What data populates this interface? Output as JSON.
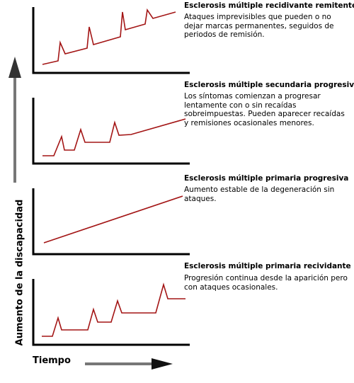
{
  "axis_labels": {
    "y": "Aumento de la discapacidad",
    "x": "Tiempo"
  },
  "panels": [
    {
      "title": "Esclerosis múltiple recidivante remitente",
      "description": "Ataques imprevisibles que pueden o no dejar marcas permanentes, seguidos de periodos de remisión."
    },
    {
      "title": "Esclerosis múltiple secundaria progresiva",
      "description": "Los síntomas comienzan a progresar lentamente con o sin recaídas sobreimpuestas. Pueden aparecer recaídas y remisiones ocasionales menores."
    },
    {
      "title": "Esclerosis múltiple primaria progresiva",
      "description": "Aumento estable de la degeneración sin ataques."
    },
    {
      "title": "Esclerosis múltiple primaria recividante",
      "description": "Progresión continua desde la aparición pero con ataques ocasionales."
    }
  ],
  "colors": {
    "curve": "#a31515",
    "axes": "#000000",
    "arrow": "#777777"
  }
}
